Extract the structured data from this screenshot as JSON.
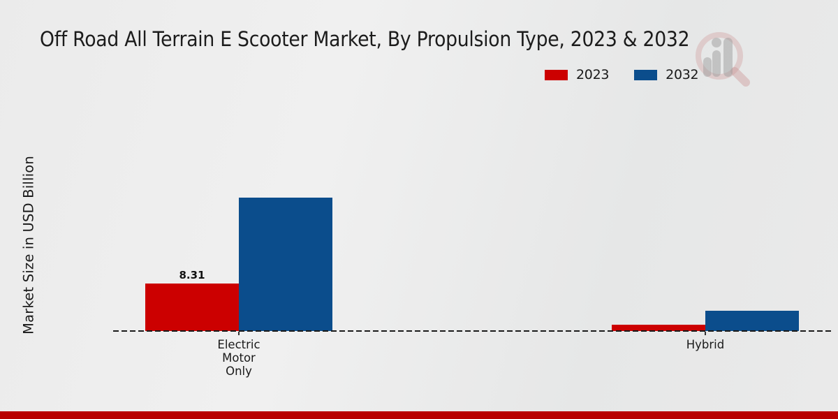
{
  "title": "Off Road All Terrain E Scooter Market, By Propulsion Type, 2023 & 2032",
  "ylabel": "Market Size in USD Billion",
  "legend": [
    {
      "label": "2023",
      "color": "#cc0000"
    },
    {
      "label": "2032",
      "color": "#0b4d8c"
    }
  ],
  "colors": {
    "series_2023": "#cc0000",
    "series_2032": "#0b4d8c",
    "footer_accent": "#b80000",
    "text": "#1a1a1a",
    "zero_line": "#1a1a1a"
  },
  "watermark_icon": "magnifier-bar-chart-logo",
  "chart_data": {
    "type": "bar",
    "categories": [
      "Electric Motor Only",
      "Hybrid"
    ],
    "tick_label_lines": [
      [
        "Electric",
        "Motor",
        "Only"
      ],
      [
        "Hybrid"
      ]
    ],
    "series": [
      {
        "name": "2023",
        "color": "#cc0000",
        "values": [
          8.31,
          1.05
        ],
        "value_labels": [
          "8.31",
          ""
        ]
      },
      {
        "name": "2032",
        "color": "#0b4d8c",
        "values": [
          23.5,
          3.6
        ],
        "value_labels": [
          "",
          ""
        ]
      }
    ],
    "title": "Off Road All Terrain E Scooter Market, By Propulsion Type, 2023 & 2032",
    "xlabel": "",
    "ylabel": "Market Size in USD Billion",
    "baseline": 0,
    "grid": false,
    "zero_line_style": "dashed",
    "legend_position": "top-right",
    "shown_value_labels": [
      "8.31"
    ]
  }
}
